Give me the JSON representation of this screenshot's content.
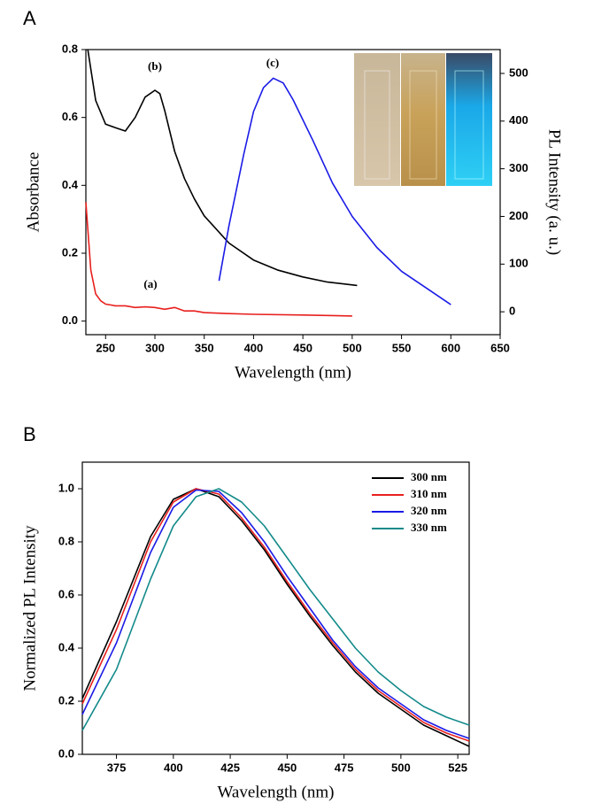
{
  "chart_data": [
    {
      "type": "line",
      "panel": "A",
      "xlabel": "Wavelength (nm)",
      "ylabel": "Absorbance",
      "y2label": "PL Intensity (a. u.)",
      "xlim": [
        230,
        650
      ],
      "xticks": [
        250,
        300,
        350,
        400,
        450,
        500,
        550,
        600,
        650
      ],
      "ylim": [
        -0.04,
        0.8
      ],
      "yticks": [
        {
          "value": 0,
          "label": "0.0"
        },
        {
          "value": 0.2,
          "label": "0.2"
        },
        {
          "value": 0.4,
          "label": "0.4"
        },
        {
          "value": 0.6,
          "label": "0.6"
        },
        {
          "value": 0.8,
          "label": "0.8"
        }
      ],
      "y2lim": [
        -48,
        550
      ],
      "y2ticks": [
        0,
        100,
        200,
        300,
        400,
        500
      ],
      "annotations": [
        "(a)",
        "(b)",
        "(c)"
      ],
      "series": [
        {
          "color": "#e8201e",
          "x": [
            230,
            235,
            240,
            245,
            250,
            260,
            270,
            280,
            290,
            300,
            310,
            320,
            330,
            340,
            350,
            375,
            400,
            450,
            500
          ],
          "values": [
            0.35,
            0.15,
            0.08,
            0.06,
            0.05,
            0.045,
            0.045,
            0.04,
            0.042,
            0.04,
            0.035,
            0.04,
            0.03,
            0.03,
            0.025,
            0.022,
            0.02,
            0.018,
            0.015
          ]
        },
        {
          "color": "#000000",
          "x": [
            232,
            240,
            250,
            260,
            270,
            280,
            290,
            300,
            305,
            310,
            320,
            330,
            340,
            350,
            375,
            400,
            425,
            450,
            475,
            505
          ],
          "values": [
            0.8,
            0.65,
            0.58,
            0.57,
            0.56,
            0.6,
            0.66,
            0.68,
            0.67,
            0.62,
            0.5,
            0.42,
            0.36,
            0.31,
            0.23,
            0.18,
            0.15,
            0.13,
            0.115,
            0.105
          ]
        },
        {
          "color": "#1a1ae6",
          "axis": "y2",
          "x": [
            365,
            375,
            390,
            400,
            410,
            420,
            430,
            440,
            460,
            480,
            500,
            525,
            550,
            575,
            600
          ],
          "values": [
            65,
            180,
            330,
            420,
            470,
            490,
            480,
            445,
            360,
            270,
            200,
            135,
            85,
            50,
            15
          ]
        }
      ]
    },
    {
      "type": "line",
      "panel": "B",
      "xlabel": "Wavelength (nm)",
      "ylabel": "Normalized PL Intensity",
      "xlim": [
        360,
        530
      ],
      "xticks": [
        375,
        400,
        425,
        450,
        475,
        500,
        525
      ],
      "ylim": [
        0,
        1.1
      ],
      "yticks": [
        {
          "value": 0,
          "label": "0.0"
        },
        {
          "value": 0.2,
          "label": "0.2"
        },
        {
          "value": 0.4,
          "label": "0.4"
        },
        {
          "value": 0.6,
          "label": "0.6"
        },
        {
          "value": 0.8,
          "label": "0.8"
        },
        {
          "value": 1,
          "label": "1.0"
        }
      ],
      "legend": "upper right",
      "series": [
        {
          "name": "300 nm",
          "color": "#000000",
          "x": [
            360,
            375,
            390,
            400,
            410,
            420,
            430,
            440,
            450,
            460,
            470,
            480,
            490,
            500,
            510,
            520,
            530
          ],
          "values": [
            0.21,
            0.5,
            0.82,
            0.96,
            1.0,
            0.97,
            0.88,
            0.77,
            0.64,
            0.52,
            0.41,
            0.31,
            0.23,
            0.17,
            0.11,
            0.07,
            0.03
          ]
        },
        {
          "name": "310 nm",
          "color": "#e8201e",
          "x": [
            360,
            375,
            390,
            400,
            410,
            420,
            430,
            440,
            450,
            460,
            470,
            480,
            490,
            500,
            510,
            520,
            530
          ],
          "values": [
            0.19,
            0.47,
            0.8,
            0.95,
            1.0,
            0.98,
            0.89,
            0.78,
            0.65,
            0.53,
            0.42,
            0.32,
            0.24,
            0.18,
            0.12,
            0.08,
            0.05
          ]
        },
        {
          "name": "320 nm",
          "color": "#1a1ae6",
          "x": [
            360,
            375,
            390,
            400,
            410,
            420,
            430,
            440,
            450,
            460,
            470,
            480,
            490,
            500,
            510,
            520,
            530
          ],
          "values": [
            0.15,
            0.42,
            0.76,
            0.93,
            0.995,
            0.99,
            0.91,
            0.8,
            0.67,
            0.55,
            0.43,
            0.33,
            0.25,
            0.19,
            0.13,
            0.09,
            0.06
          ]
        },
        {
          "name": "330 nm",
          "color": "#138a8a",
          "x": [
            360,
            375,
            390,
            400,
            410,
            420,
            430,
            440,
            450,
            460,
            470,
            480,
            490,
            500,
            510,
            520,
            530
          ],
          "values": [
            0.09,
            0.32,
            0.66,
            0.86,
            0.97,
            1.0,
            0.95,
            0.86,
            0.74,
            0.62,
            0.51,
            0.4,
            0.31,
            0.24,
            0.18,
            0.14,
            0.11
          ]
        }
      ]
    }
  ]
}
